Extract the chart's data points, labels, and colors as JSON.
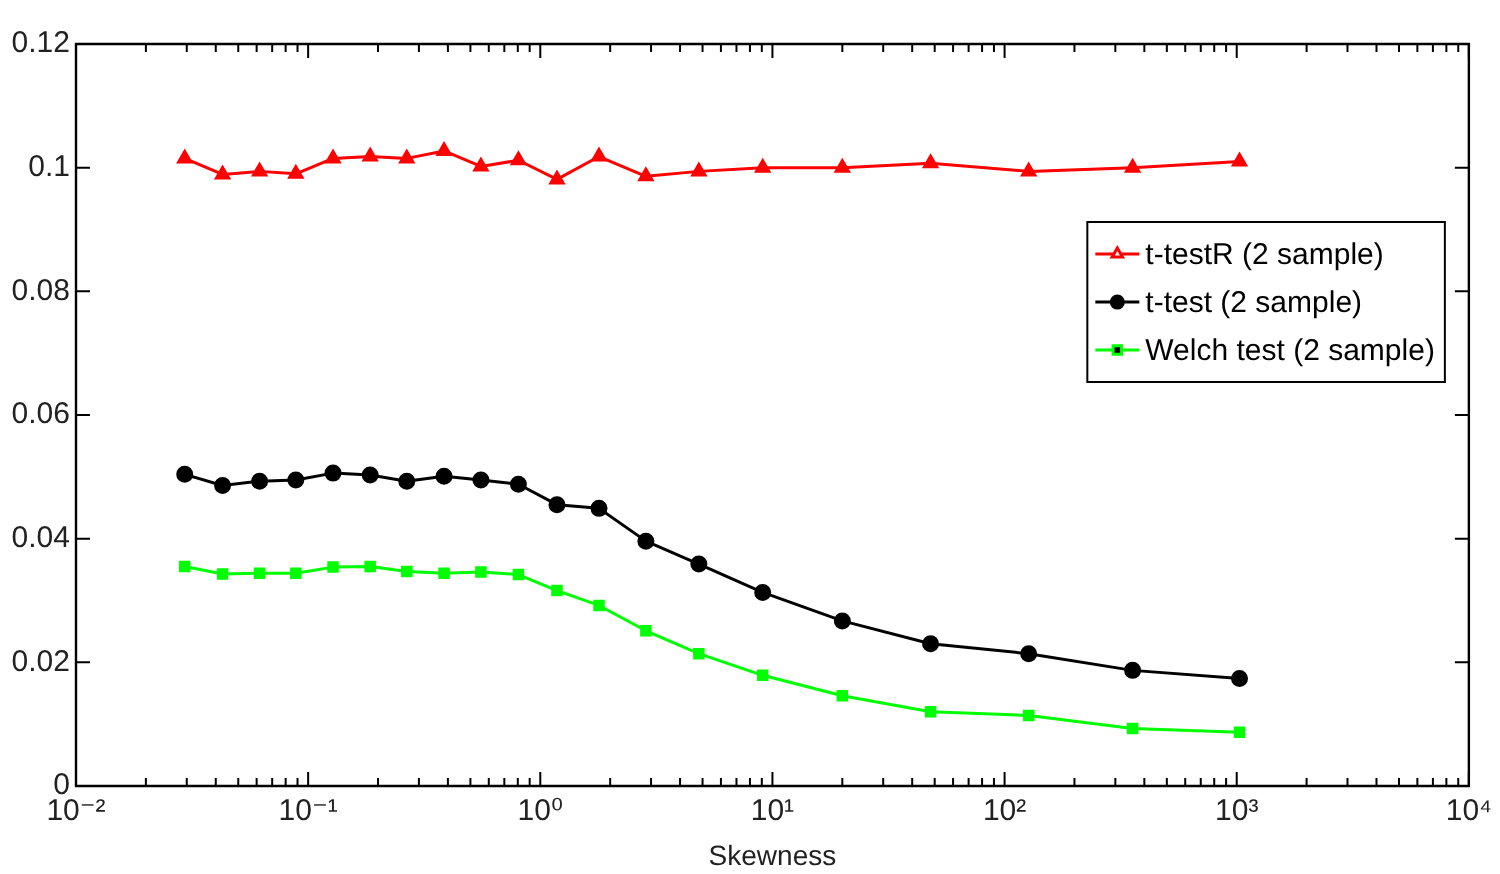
{
  "chart_data": {
    "type": "line",
    "xlabel": "Skewness",
    "x": [
      0.0294,
      0.0428,
      0.0618,
      0.0885,
      0.128,
      0.185,
      0.266,
      0.385,
      0.555,
      0.805,
      1.18,
      1.79,
      2.85,
      4.82,
      9.08,
      20,
      48,
      127,
      356,
      1028
    ],
    "series": [
      {
        "name": "t-testR (2 sample)",
        "color": "#ff0000",
        "marker": "triangle",
        "values": [
          0.1015,
          0.0989,
          0.0994,
          0.099,
          0.1015,
          0.1018,
          0.1015,
          0.1027,
          0.1002,
          0.1012,
          0.0981,
          0.1018,
          0.0986,
          0.0994,
          0.1,
          0.1,
          0.1007,
          0.0994,
          0.1,
          0.101
        ]
      },
      {
        "name": "t-test (2 sample)",
        "color": "#000000",
        "marker": "circle",
        "values": [
          0.0504,
          0.0486,
          0.0493,
          0.0495,
          0.0506,
          0.0503,
          0.0493,
          0.0501,
          0.0495,
          0.0488,
          0.0455,
          0.0449,
          0.0396,
          0.0359,
          0.0313,
          0.0267,
          0.023,
          0.0214,
          0.0187,
          0.0174
        ]
      },
      {
        "name": "Welch test (2 sample)",
        "color": "#00ff00",
        "marker": "square",
        "values": [
          0.0355,
          0.0343,
          0.0344,
          0.0344,
          0.0354,
          0.0355,
          0.0347,
          0.0344,
          0.0346,
          0.0342,
          0.0316,
          0.0292,
          0.0251,
          0.0214,
          0.0179,
          0.0146,
          0.012,
          0.0114,
          0.0093,
          0.0087
        ]
      }
    ],
    "log": "x",
    "xlim": [
      0.01,
      10000
    ],
    "xticks": [
      {
        "value": 0.01,
        "label": "10⁻²"
      },
      {
        "value": 0.02,
        "label": null
      },
      {
        "value": 0.03,
        "label": null
      },
      {
        "value": 0.04,
        "label": null
      },
      {
        "value": 0.05,
        "label": null
      },
      {
        "value": 0.06,
        "label": null
      },
      {
        "value": 0.07,
        "label": null
      },
      {
        "value": 0.08,
        "label": null
      },
      {
        "value": 0.09,
        "label": null
      },
      {
        "value": 0.1,
        "label": "10⁻¹"
      },
      {
        "value": 0.2,
        "label": null
      },
      {
        "value": 0.3,
        "label": null
      },
      {
        "value": 0.4,
        "label": null
      },
      {
        "value": 0.5,
        "label": null
      },
      {
        "value": 0.6,
        "label": null
      },
      {
        "value": 0.7,
        "label": null
      },
      {
        "value": 0.8,
        "label": null
      },
      {
        "value": 0.9,
        "label": null
      },
      {
        "value": 1,
        "label": "10⁰"
      },
      {
        "value": 2,
        "label": null
      },
      {
        "value": 3,
        "label": null
      },
      {
        "value": 4,
        "label": null
      },
      {
        "value": 5,
        "label": null
      },
      {
        "value": 6,
        "label": null
      },
      {
        "value": 7,
        "label": null
      },
      {
        "value": 8,
        "label": null
      },
      {
        "value": 9,
        "label": null
      },
      {
        "value": 10,
        "label": "10¹"
      },
      {
        "value": 20,
        "label": null
      },
      {
        "value": 30,
        "label": null
      },
      {
        "value": 40,
        "label": null
      },
      {
        "value": 50,
        "label": null
      },
      {
        "value": 60,
        "label": null
      },
      {
        "value": 70,
        "label": null
      },
      {
        "value": 80,
        "label": null
      },
      {
        "value": 90,
        "label": null
      },
      {
        "value": 100,
        "label": "10²"
      },
      {
        "value": 200,
        "label": null
      },
      {
        "value": 300,
        "label": null
      },
      {
        "value": 400,
        "label": null
      },
      {
        "value": 500,
        "label": null
      },
      {
        "value": 600,
        "label": null
      },
      {
        "value": 700,
        "label": null
      },
      {
        "value": 800,
        "label": null
      },
      {
        "value": 900,
        "label": null
      },
      {
        "value": 1000,
        "label": "10³"
      },
      {
        "value": 2000,
        "label": null
      },
      {
        "value": 3000,
        "label": null
      },
      {
        "value": 4000,
        "label": null
      },
      {
        "value": 5000,
        "label": null
      },
      {
        "value": 6000,
        "label": null
      },
      {
        "value": 7000,
        "label": null
      },
      {
        "value": 8000,
        "label": null
      },
      {
        "value": 9000,
        "label": null
      },
      {
        "value": 10000,
        "label": "10⁴"
      }
    ],
    "ylim": [
      0,
      0.12
    ],
    "yticks": [
      0,
      0.02,
      0.04,
      0.06,
      0.08,
      0.1,
      0.12
    ],
    "grid": false,
    "legend": "right",
    "line_style": "solid"
  }
}
